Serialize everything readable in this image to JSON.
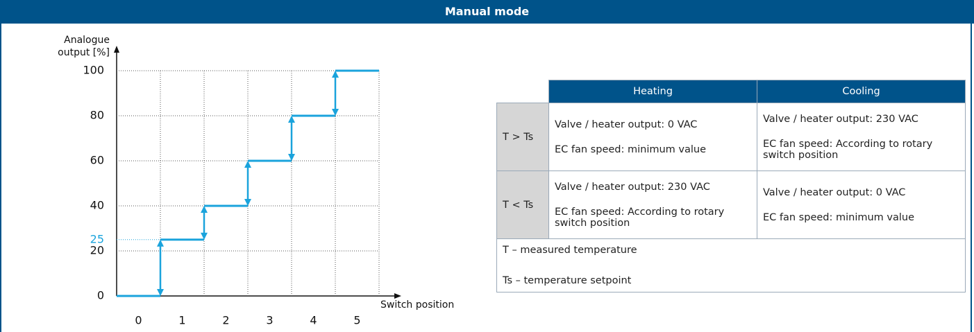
{
  "header": {
    "title": "Manual mode"
  },
  "chart_data": {
    "type": "step",
    "ylabel": [
      "Analogue",
      "output [%]"
    ],
    "xlabel": "Switch position",
    "categories": [
      "0",
      "1",
      "2",
      "3",
      "4",
      "5"
    ],
    "values": [
      0,
      25,
      40,
      60,
      80,
      100
    ],
    "color": "#1aa3dc",
    "ylim": [
      0,
      100
    ],
    "yticks": [
      0,
      20,
      40,
      60,
      80,
      100
    ],
    "highlight_yticks": [
      25
    ],
    "grid": true
  },
  "table": {
    "columns": [
      "Heating",
      "Cooling"
    ],
    "rows": [
      {
        "label": "T > Ts",
        "cells": [
          [
            "Valve / heater output: 0 VAC",
            "EC fan speed: minimum value"
          ],
          [
            "Valve / heater output: 230 VAC",
            "EC fan speed: According to rotary switch position"
          ]
        ]
      },
      {
        "label": "T < Ts",
        "cells": [
          [
            "Valve / heater output: 230 VAC",
            "EC fan speed: According to rotary switch position"
          ],
          [
            "Valve / heater output: 0 VAC",
            "EC fan speed: minimum value"
          ]
        ]
      }
    ],
    "notes": [
      "T – measured temperature",
      "Ts – temperature setpoint"
    ]
  }
}
